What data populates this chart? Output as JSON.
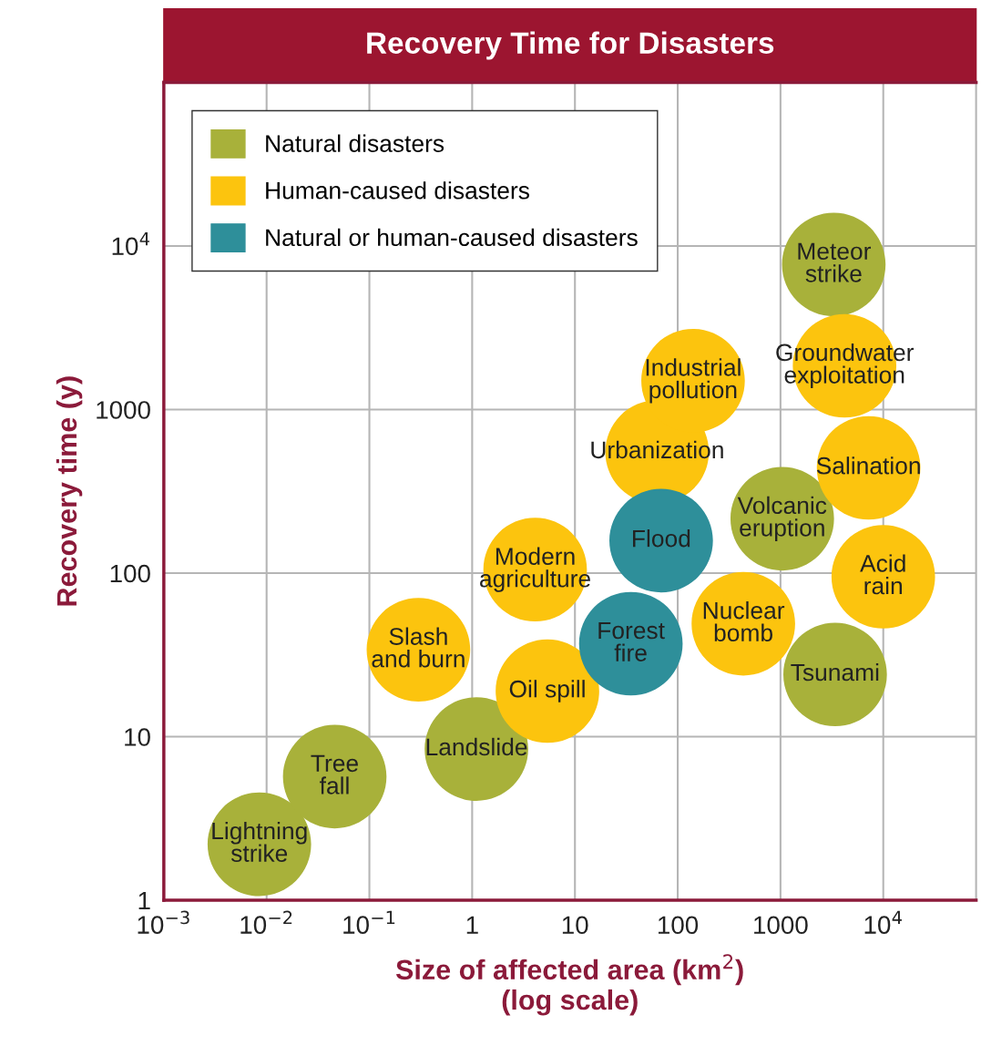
{
  "chart_data": {
    "type": "scatter",
    "title": "Recovery Time for Disasters",
    "xlabel": "Size of affected area (km$^{2}$)\n(log scale)",
    "ylabel": "Recovery time (y)",
    "log": "xy",
    "grid": true,
    "legend": "top left",
    "xlim": [
      0.001,
      80000
    ],
    "ylim": [
      1,
      100000
    ],
    "xticks": [
      {
        "value": 0.001,
        "label": "10$^{−3}$"
      },
      {
        "value": 0.01,
        "label": "10$^{−2}$"
      },
      {
        "value": 0.1,
        "label": "10$^{−1}$"
      },
      1,
      10,
      100,
      1000,
      {
        "value": 10000,
        "label": "10$^{4}$"
      }
    ],
    "yticks": [
      1,
      10,
      100,
      1000,
      {
        "value": 10000,
        "label": "10$^{4}$"
      }
    ],
    "series": [
      {
        "name": "Natural disasters",
        "color": "#a8b13a",
        "x": [
          0.0085,
          0.046,
          1.1,
          1040,
          3400,
          3300
        ],
        "values": [
          2.2,
          5.7,
          8.4,
          215,
          24,
          7700
        ]
      },
      {
        "name": "Human-caused disasters",
        "color": "#fcc40e",
        "x": [
          0.3,
          5.4,
          4.1,
          63,
          141,
          435,
          4200,
          7200,
          10000
        ],
        "values": [
          34,
          19,
          105,
          550,
          1500,
          49,
          1850,
          440,
          95
        ]
      },
      {
        "name": "Natural or human-caused disasters",
        "color": "#2e8f9a",
        "x": [
          35,
          69
        ],
        "values": [
          37,
          158
        ]
      }
    ],
    "annotations": [
      {
        "text": "Lightning\nstrike",
        "x": 0.0085,
        "y": 2.2
      },
      {
        "text": "Tree\nfall",
        "x": 0.046,
        "y": 5.7
      },
      {
        "text": "Landslide",
        "x": 1.1,
        "y": 8.4
      },
      {
        "text": "Slash\nand burn",
        "x": 0.3,
        "y": 34
      },
      {
        "text": "Oil spill",
        "x": 5.4,
        "y": 19
      },
      {
        "text": "Modern\nagriculture",
        "x": 4.1,
        "y": 105
      },
      {
        "text": "Forest\nfire",
        "x": 35,
        "y": 37
      },
      {
        "text": "Flood",
        "x": 69,
        "y": 158
      },
      {
        "text": "Urbanization",
        "x": 63,
        "y": 550
      },
      {
        "text": "Industrial\npollution",
        "x": 141,
        "y": 1500
      },
      {
        "text": "Nuclear\nbomb",
        "x": 435,
        "y": 49
      },
      {
        "text": "Volcanic\neruption",
        "x": 1040,
        "y": 215
      },
      {
        "text": "Tsunami",
        "x": 3400,
        "y": 24
      },
      {
        "text": "Meteor\nstrike",
        "x": 3300,
        "y": 7700
      },
      {
        "text": "Groundwater\nexploitation",
        "x": 4200,
        "y": 1850
      },
      {
        "text": "Salination",
        "x": 7200,
        "y": 440
      },
      {
        "text": "Acid\nrain",
        "x": 10000,
        "y": 95
      }
    ]
  }
}
